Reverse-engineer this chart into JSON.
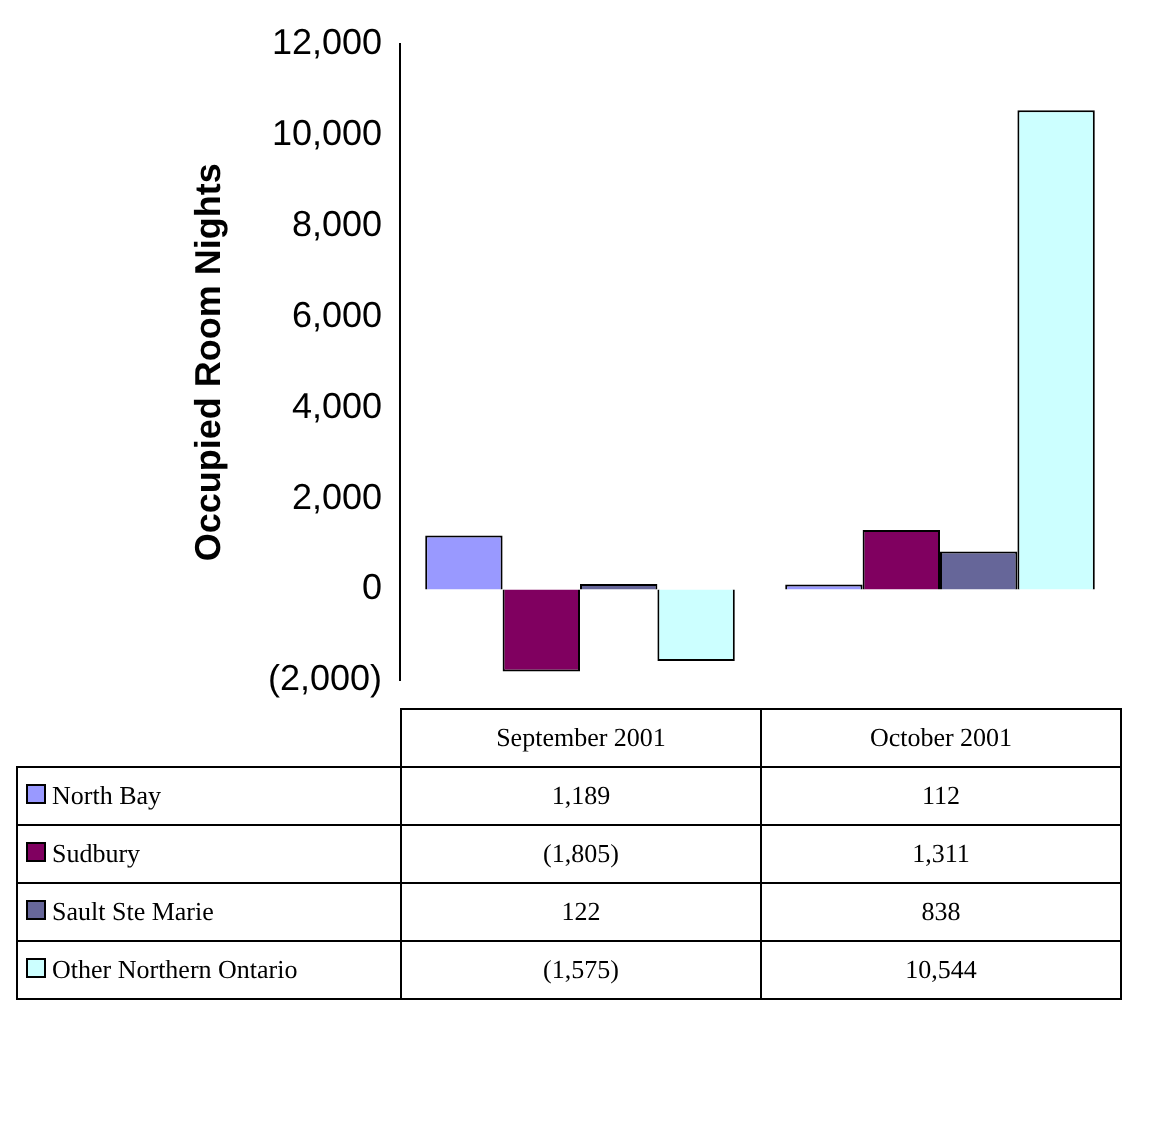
{
  "chart_data": {
    "type": "bar",
    "ylabel": "Occupied Room Nights",
    "categories": [
      "September 2001",
      "October 2001"
    ],
    "series": [
      {
        "name": "North Bay",
        "color": "#9999ff",
        "values": [
          1189,
          112
        ],
        "value_labels": [
          "1,189",
          "112"
        ]
      },
      {
        "name": "Sudbury",
        "color": "#800060",
        "values": [
          -1805,
          1311
        ],
        "value_labels": [
          "(1,805)",
          "1,311"
        ]
      },
      {
        "name": "Sault Ste Marie",
        "color": "#666699",
        "values": [
          122,
          838
        ],
        "value_labels": [
          "122",
          "838"
        ]
      },
      {
        "name": "Other Northern Ontario",
        "color": "#ccffff",
        "values": [
          -1575,
          10544
        ],
        "value_labels": [
          "(1,575)",
          "10,544"
        ]
      }
    ],
    "ylim": [
      -2000,
      12000
    ],
    "yticks": [
      {
        "value": -2000,
        "label": "(2,000)"
      },
      {
        "value": 0,
        "label": "0"
      },
      {
        "value": 2000,
        "label": "2,000"
      },
      {
        "value": 4000,
        "label": "4,000"
      },
      {
        "value": 6000,
        "label": "6,000"
      },
      {
        "value": 8000,
        "label": "8,000"
      },
      {
        "value": 10000,
        "label": "10,000"
      },
      {
        "value": 12000,
        "label": "12,000"
      }
    ],
    "legend": "bottom",
    "grid": false
  }
}
